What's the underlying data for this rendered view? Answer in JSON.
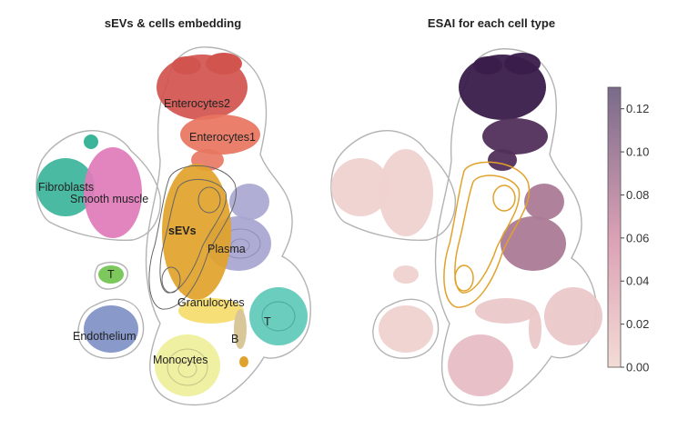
{
  "chart_data": [
    {
      "type": "scatter",
      "title": "sEVs & cells embedding",
      "xlabel": "",
      "ylabel": "",
      "grid": false,
      "clusters": [
        {
          "name": "Enterocytes2",
          "color": "#d2544e"
        },
        {
          "name": "Enterocytes1",
          "color": "#e8755f"
        },
        {
          "name": "Fibroblasts",
          "color": "#3bb59a"
        },
        {
          "name": "Smooth muscle",
          "color": "#e07ab8"
        },
        {
          "name": "sEVs",
          "color": "#e1a22b"
        },
        {
          "name": "Plasma",
          "color": "#a7a5d0"
        },
        {
          "name": "T",
          "color": "#7dc85c"
        },
        {
          "name": "Granulocytes",
          "color": "#f3d95e"
        },
        {
          "name": "T",
          "color": "#5fc9b8"
        },
        {
          "name": "Endothelium",
          "color": "#7f90c5"
        },
        {
          "name": "B",
          "color": "#d9c79a"
        },
        {
          "name": "Monocytes",
          "color": "#eeef9c"
        }
      ]
    },
    {
      "type": "scatter",
      "title": "ESAI for each cell type",
      "colorbar": {
        "min": 0.0,
        "max": 0.13,
        "ticks": [
          "0.00",
          "0.02",
          "0.04",
          "0.06",
          "0.08",
          "0.10",
          "0.12"
        ],
        "low_color": "#f3dcd5",
        "mid_color": "#dca2b6",
        "high_color": "#3a1c4b"
      },
      "cluster_esai": [
        {
          "name": "Enterocytes2",
          "value": 0.13
        },
        {
          "name": "Enterocytes1",
          "value": 0.12
        },
        {
          "name": "Fibroblasts",
          "value": 0.01
        },
        {
          "name": "Smooth muscle",
          "value": 0.01
        },
        {
          "name": "Plasma",
          "value": 0.08
        },
        {
          "name": "T",
          "value": 0.01
        },
        {
          "name": "Granulocytes",
          "value": 0.02
        },
        {
          "name": "T",
          "value": 0.02
        },
        {
          "name": "Endothelium",
          "value": 0.01
        },
        {
          "name": "B",
          "value": 0.02
        },
        {
          "name": "Monocytes",
          "value": 0.03
        }
      ]
    }
  ]
}
